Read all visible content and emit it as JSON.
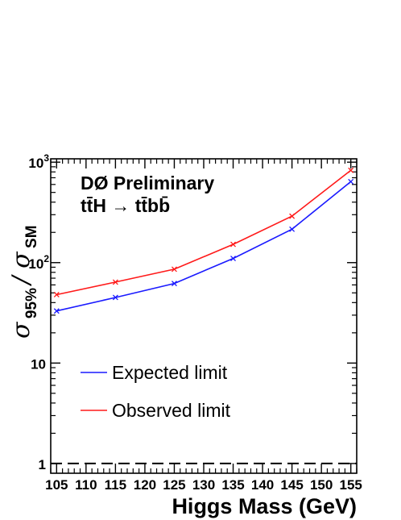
{
  "chart_data": {
    "type": "line",
    "title": "",
    "annotations": [
      "DØ Preliminary",
      "tt̄H → tt̄bb̄"
    ],
    "xlabel": "Higgs Mass (GeV)",
    "ylabel": {
      "main": "σ",
      "sub1": "95%",
      "sep": " / ",
      "main2": "σ",
      "sub2": "SM"
    },
    "x_ticks": [
      "105",
      "110",
      "115",
      "120",
      "125",
      "130",
      "135",
      "140",
      "145",
      "150",
      "155"
    ],
    "y_ticks": [
      {
        "value": 1,
        "label": "1"
      },
      {
        "value": 10,
        "label": "10"
      },
      {
        "value": 100,
        "label": "10",
        "exp": "2"
      },
      {
        "value": 1000,
        "label": "10",
        "exp": "3"
      }
    ],
    "xlim": [
      104,
      156
    ],
    "ylim": [
      0.8,
      1080
    ],
    "yscale": "log",
    "grid": false,
    "legend_position": "bottom-left",
    "reference_line": {
      "y": 1,
      "style": "dashed",
      "color": "#000000"
    },
    "series": [
      {
        "name": "Expected limit",
        "color": "#1a1aff",
        "x": [
          105,
          115,
          125,
          135,
          145,
          155
        ],
        "values": [
          33,
          45,
          62,
          110,
          215,
          640
        ]
      },
      {
        "name": "Observed limit",
        "color": "#ff1a1a",
        "x": [
          105,
          115,
          125,
          135,
          145,
          155
        ],
        "values": [
          48,
          64,
          86,
          152,
          290,
          830
        ]
      }
    ]
  }
}
